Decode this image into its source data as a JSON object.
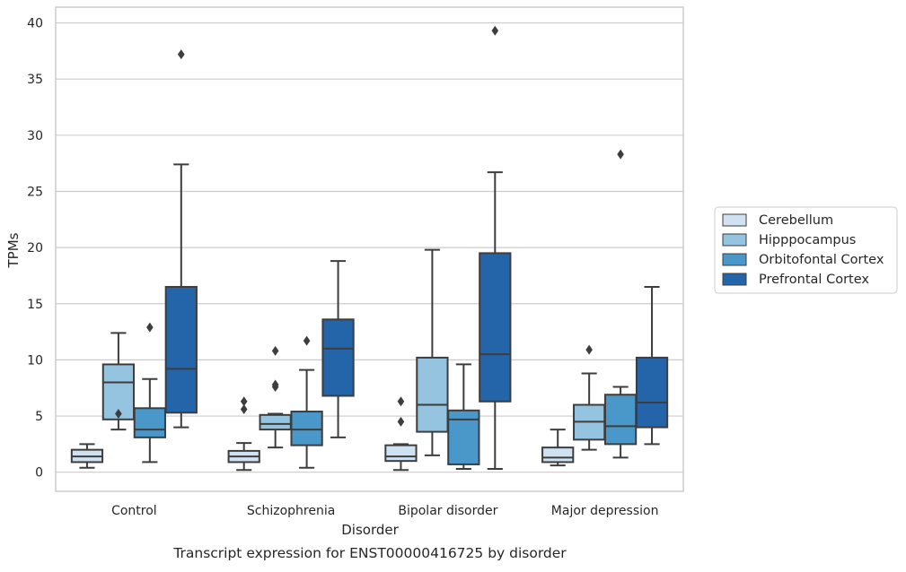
{
  "caption": "Transcript expression for ENST00000416725 by disorder",
  "chart_data": {
    "type": "box",
    "xlabel": "Disorder",
    "ylabel": "TPMs",
    "ylim": [
      -1.7,
      41.4
    ],
    "yticks": [
      0,
      5,
      10,
      15,
      20,
      25,
      30,
      35,
      40
    ],
    "grid": "horizontal",
    "legend_position": "right",
    "categories": [
      "Control",
      "Schizophrenia",
      "Bipolar disorder",
      "Major depression"
    ],
    "series": [
      {
        "name": "Cerebellum",
        "color": "#d0e1f2",
        "boxes": [
          {
            "whislo": 0.4,
            "q1": 0.9,
            "med": 1.4,
            "q3": 2.0,
            "whishi": 2.5,
            "fliers": []
          },
          {
            "whislo": 0.2,
            "q1": 0.9,
            "med": 1.4,
            "q3": 1.9,
            "whishi": 2.6,
            "fliers": [
              5.6,
              6.3
            ]
          },
          {
            "whislo": 0.2,
            "q1": 1.0,
            "med": 1.4,
            "q3": 2.4,
            "whishi": 2.5,
            "fliers": [
              4.5,
              6.3
            ]
          },
          {
            "whislo": 0.6,
            "q1": 0.9,
            "med": 1.3,
            "q3": 2.2,
            "whishi": 3.8,
            "fliers": []
          }
        ]
      },
      {
        "name": "Hipppocampus",
        "color": "#94c4df",
        "boxes": [
          {
            "whislo": 3.8,
            "q1": 4.7,
            "med": 8.0,
            "q3": 9.6,
            "whishi": 12.4,
            "fliers": [
              5.2
            ]
          },
          {
            "whislo": 2.2,
            "q1": 3.8,
            "med": 4.3,
            "q3": 5.1,
            "whishi": 5.2,
            "fliers": [
              7.6,
              7.8,
              10.8
            ]
          },
          {
            "whislo": 1.5,
            "q1": 3.6,
            "med": 6.0,
            "q3": 10.2,
            "whishi": 19.8,
            "fliers": []
          },
          {
            "whislo": 2.0,
            "q1": 2.9,
            "med": 4.5,
            "q3": 6.0,
            "whishi": 8.8,
            "fliers": [
              10.9
            ]
          }
        ]
      },
      {
        "name": "Orbitofontal Cortex",
        "color": "#4a98c9",
        "boxes": [
          {
            "whislo": 0.9,
            "q1": 3.1,
            "med": 3.8,
            "q3": 5.7,
            "whishi": 8.3,
            "fliers": [
              12.9
            ]
          },
          {
            "whislo": 0.4,
            "q1": 2.4,
            "med": 3.8,
            "q3": 5.4,
            "whishi": 9.1,
            "fliers": [
              11.7
            ]
          },
          {
            "whislo": 0.3,
            "q1": 0.7,
            "med": 4.7,
            "q3": 5.5,
            "whishi": 9.6,
            "fliers": []
          },
          {
            "whislo": 1.3,
            "q1": 2.5,
            "med": 4.1,
            "q3": 6.9,
            "whishi": 7.6,
            "fliers": [
              28.3
            ]
          }
        ]
      },
      {
        "name": "Prefrontal Cortex",
        "color": "#2464a9",
        "boxes": [
          {
            "whislo": 4.0,
            "q1": 5.3,
            "med": 9.2,
            "q3": 16.5,
            "whishi": 27.4,
            "fliers": [
              37.2
            ]
          },
          {
            "whislo": 3.1,
            "q1": 6.8,
            "med": 11.0,
            "q3": 13.6,
            "whishi": 18.8,
            "fliers": []
          },
          {
            "whislo": 0.3,
            "q1": 6.3,
            "med": 10.5,
            "q3": 19.5,
            "whishi": 26.7,
            "fliers": [
              39.3
            ]
          },
          {
            "whislo": 2.5,
            "q1": 4.0,
            "med": 6.2,
            "q3": 10.2,
            "whishi": 16.5,
            "fliers": []
          }
        ]
      }
    ]
  }
}
